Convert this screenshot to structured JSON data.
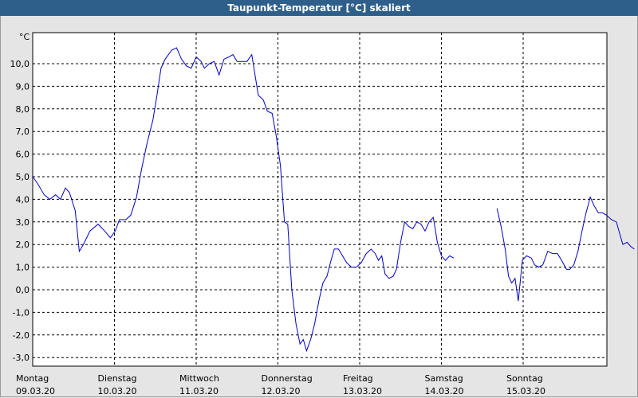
{
  "title": "Taupunkt-Temperatur [°C] skaliert",
  "chart_data": {
    "type": "line",
    "title": "Taupunkt-Temperatur [°C] skaliert",
    "ylabel": "°C",
    "ylim": [
      -3.3,
      11.3
    ],
    "yticks": [
      "10,0",
      "9,0",
      "8,0",
      "7,0",
      "6,0",
      "5,0",
      "4,0",
      "3,0",
      "2,0",
      "1,0",
      "0,0",
      "-1,0",
      "-2,0",
      "-3,0"
    ],
    "ytick_values": [
      10,
      9,
      8,
      7,
      6,
      5,
      4,
      3,
      2,
      1,
      0,
      -1,
      -2,
      -3
    ],
    "xlim": [
      0,
      7
    ],
    "xticks": [
      {
        "day": "Montag",
        "date": "09.03.20",
        "x": 0
      },
      {
        "day": "Dienstag",
        "date": "10.03.20",
        "x": 1
      },
      {
        "day": "Mittwoch",
        "date": "11.03.20",
        "x": 2
      },
      {
        "day": "Donnerstag",
        "date": "12.03.20",
        "x": 3
      },
      {
        "day": "Freitag",
        "date": "13.03.20",
        "x": 4
      },
      {
        "day": "Samstag",
        "date": "14.03.20",
        "x": 5
      },
      {
        "day": "Sonntag",
        "date": "15.03.20",
        "x": 6
      }
    ],
    "grid": true,
    "line_color": "#0000c8",
    "series": [
      {
        "values": [
          [
            0.0,
            5.0
          ],
          [
            0.06,
            4.7
          ],
          [
            0.14,
            4.2
          ],
          [
            0.21,
            4.0
          ],
          [
            0.28,
            4.2
          ],
          [
            0.34,
            4.0
          ],
          [
            0.4,
            4.5
          ],
          [
            0.45,
            4.3
          ],
          [
            0.52,
            3.5
          ],
          [
            0.57,
            1.7
          ],
          [
            0.62,
            2.0
          ],
          [
            0.7,
            2.6
          ],
          [
            0.8,
            2.9
          ],
          [
            0.88,
            2.6
          ],
          [
            0.95,
            2.3
          ],
          [
            1.01,
            2.6
          ],
          [
            1.06,
            3.1
          ],
          [
            1.14,
            3.1
          ],
          [
            1.2,
            3.3
          ],
          [
            1.27,
            4.1
          ],
          [
            1.33,
            5.3
          ],
          [
            1.4,
            6.5
          ],
          [
            1.47,
            7.5
          ],
          [
            1.52,
            8.6
          ],
          [
            1.57,
            9.8
          ],
          [
            1.62,
            10.2
          ],
          [
            1.7,
            10.6
          ],
          [
            1.76,
            10.7
          ],
          [
            1.82,
            10.2
          ],
          [
            1.88,
            9.9
          ],
          [
            1.94,
            9.8
          ],
          [
            2.0,
            10.3
          ],
          [
            2.06,
            10.1
          ],
          [
            2.1,
            9.8
          ],
          [
            2.16,
            10.0
          ],
          [
            2.22,
            10.1
          ],
          [
            2.28,
            9.5
          ],
          [
            2.34,
            10.2
          ],
          [
            2.4,
            10.3
          ],
          [
            2.45,
            10.4
          ],
          [
            2.5,
            10.1
          ],
          [
            2.56,
            10.1
          ],
          [
            2.62,
            10.1
          ],
          [
            2.68,
            10.4
          ],
          [
            2.72,
            9.5
          ],
          [
            2.76,
            8.6
          ],
          [
            2.82,
            8.4
          ],
          [
            2.87,
            7.9
          ],
          [
            2.93,
            7.8
          ],
          [
            2.98,
            6.8
          ],
          [
            3.03,
            5.5
          ],
          [
            3.08,
            3.0
          ],
          [
            3.12,
            2.9
          ],
          [
            3.17,
            0.0
          ],
          [
            3.22,
            -1.5
          ],
          [
            3.27,
            -2.4
          ],
          [
            3.31,
            -2.2
          ],
          [
            3.35,
            -2.7
          ],
          [
            3.4,
            -2.2
          ],
          [
            3.45,
            -1.5
          ],
          [
            3.5,
            -0.5
          ],
          [
            3.55,
            0.3
          ],
          [
            3.6,
            0.6
          ],
          [
            3.65,
            1.3
          ],
          [
            3.69,
            1.8
          ],
          [
            3.74,
            1.8
          ],
          [
            3.79,
            1.5
          ],
          [
            3.84,
            1.2
          ],
          [
            3.9,
            1.0
          ],
          [
            3.96,
            1.0
          ],
          [
            4.02,
            1.2
          ],
          [
            4.08,
            1.6
          ],
          [
            4.14,
            1.8
          ],
          [
            4.19,
            1.6
          ],
          [
            4.23,
            1.3
          ],
          [
            4.27,
            1.5
          ],
          [
            4.31,
            0.7
          ],
          [
            4.36,
            0.5
          ],
          [
            4.41,
            0.6
          ],
          [
            4.45,
            0.9
          ],
          [
            4.5,
            2.1
          ],
          [
            4.55,
            3.0
          ],
          [
            4.6,
            2.8
          ],
          [
            4.65,
            2.7
          ],
          [
            4.7,
            3.0
          ],
          [
            4.75,
            2.9
          ],
          [
            4.8,
            2.6
          ],
          [
            4.85,
            3.0
          ],
          [
            4.9,
            3.2
          ],
          [
            4.95,
            2.1
          ],
          [
            5.0,
            1.5
          ],
          [
            5.05,
            1.3
          ],
          [
            5.1,
            1.5
          ],
          [
            5.15,
            1.4
          ]
        ]
      },
      {
        "values": [
          [
            5.68,
            3.6
          ],
          [
            5.73,
            2.8
          ],
          [
            5.78,
            1.8
          ],
          [
            5.82,
            0.6
          ],
          [
            5.86,
            0.3
          ],
          [
            5.9,
            0.5
          ],
          [
            5.94,
            -0.5
          ],
          [
            5.99,
            1.3
          ],
          [
            6.04,
            1.5
          ],
          [
            6.1,
            1.4
          ],
          [
            6.14,
            1.1
          ],
          [
            6.19,
            1.0
          ],
          [
            6.24,
            1.1
          ],
          [
            6.3,
            1.7
          ],
          [
            6.36,
            1.6
          ],
          [
            6.42,
            1.6
          ],
          [
            6.47,
            1.3
          ],
          [
            6.53,
            0.9
          ],
          [
            6.57,
            0.9
          ],
          [
            6.62,
            1.1
          ],
          [
            6.67,
            1.7
          ],
          [
            6.72,
            2.6
          ],
          [
            6.77,
            3.4
          ],
          [
            6.82,
            4.1
          ],
          [
            6.87,
            3.7
          ],
          [
            6.92,
            3.4
          ],
          [
            6.97,
            3.4
          ],
          [
            7.02,
            3.3
          ],
          [
            7.08,
            3.1
          ],
          [
            7.14,
            3.0
          ],
          [
            7.18,
            2.5
          ],
          [
            7.22,
            2.0
          ],
          [
            7.27,
            2.1
          ],
          [
            7.32,
            1.9
          ],
          [
            7.36,
            1.8
          ]
        ]
      }
    ]
  }
}
